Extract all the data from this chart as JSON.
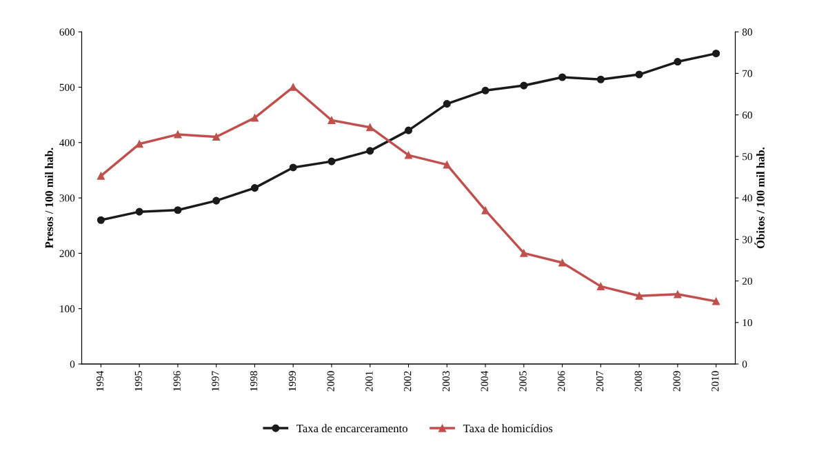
{
  "chart_data": {
    "type": "line",
    "categories": [
      "1994",
      "1995",
      "1996",
      "1997",
      "1998",
      "1999",
      "2000",
      "2001",
      "2002",
      "2003",
      "2004",
      "2005",
      "2006",
      "2007",
      "2008",
      "2009",
      "2010"
    ],
    "ylabel": "Presos / 100 mil hab.",
    "y2label": "Óbitos / 100 mil hab.",
    "ylim": [
      0,
      600
    ],
    "yticks": [
      0,
      100,
      200,
      300,
      400,
      500,
      600
    ],
    "y2lim": [
      0,
      80
    ],
    "y2ticks": [
      0,
      10,
      20,
      30,
      40,
      50,
      60,
      70,
      80
    ],
    "grid": false,
    "legend": "bottom",
    "line_style": "solid",
    "series": [
      {
        "name": "Taxa de encarceramento",
        "color": "#1a1a1a",
        "marker": "circle",
        "values": [
          260,
          275,
          278,
          295,
          318,
          355,
          366,
          385,
          422,
          470,
          494,
          503,
          518,
          514,
          523,
          546,
          561
        ]
      },
      {
        "name": "Taxa de homicídios",
        "color": "#c0504d",
        "marker": "triangle",
        "axis": "y2",
        "values": [
          45.3,
          53,
          55.3,
          54.7,
          59.3,
          66.7,
          58.7,
          57,
          50.3,
          48,
          37,
          26.7,
          24.4,
          18.7,
          16.4,
          16.8,
          15.1
        ]
      }
    ]
  }
}
